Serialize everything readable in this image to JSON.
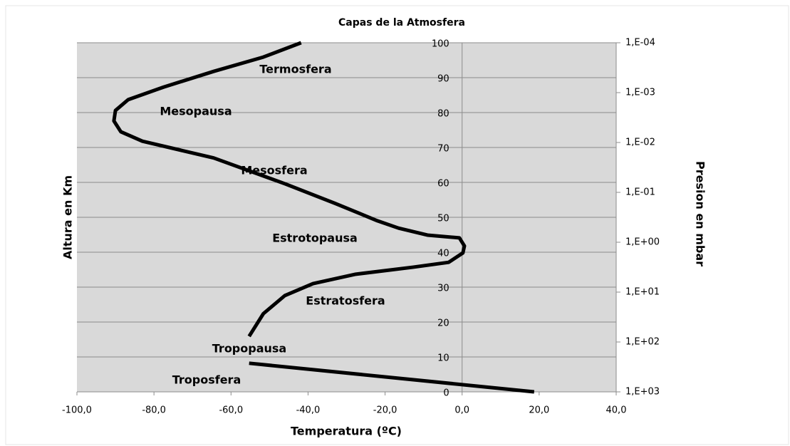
{
  "chart_data": {
    "type": "line",
    "title": "Capas de la Atmosfera",
    "x_label": "Temperatura (ºC)",
    "y_label": "Altura en Km",
    "y2_label": "Presion en mbar",
    "x": [
      18.7,
      -55.3,
      null,
      -55.3,
      -51.6,
      -46,
      -38.7,
      -27.6,
      -12.8,
      -3.5,
      0.2,
      0.6,
      -0.7,
      -9,
      -16.5,
      -22,
      -33,
      -46,
      -64.5,
      -83,
      -88.6,
      -90.4,
      -90,
      -86.7,
      -77.5,
      -64.5,
      -51.6,
      -41.8
    ],
    "series": [
      {
        "name": "Temperatura",
        "color": "#000000",
        "values": [
          0,
          8.2,
          null,
          15.9,
          22.4,
          27.6,
          31,
          33.7,
          35.7,
          37.1,
          39.8,
          41.8,
          44.1,
          44.9,
          46.9,
          49,
          54,
          59.6,
          67,
          71.8,
          74.5,
          77.6,
          80.6,
          83.7,
          87.3,
          91.8,
          95.9,
          100
        ]
      }
    ],
    "xlim": [
      -100,
      40
    ],
    "xticks": [
      {
        "value": -100,
        "label": "-100,0"
      },
      {
        "value": -80,
        "label": "-80,0"
      },
      {
        "value": -60,
        "label": "-60,0"
      },
      {
        "value": -40,
        "label": "-40,0"
      },
      {
        "value": -20,
        "label": "-20,0"
      },
      {
        "value": 0,
        "label": "0,0"
      },
      {
        "value": 20,
        "label": "20,0"
      },
      {
        "value": 40,
        "label": "40,0"
      }
    ],
    "ylim": [
      0,
      100
    ],
    "yticks": [
      0,
      10,
      20,
      30,
      40,
      50,
      60,
      70,
      80,
      90,
      100
    ],
    "y2lim": [
      1000,
      0.0001
    ],
    "y2_log": true,
    "y2ticks": [
      {
        "value": 1000,
        "label": "1,E+03"
      },
      {
        "value": 100,
        "label": "1,E+02"
      },
      {
        "value": 10,
        "label": "1,E+01"
      },
      {
        "value": 1,
        "label": "1,E+00"
      },
      {
        "value": 0.1,
        "label": "1,E-01"
      },
      {
        "value": 0.01,
        "label": "1,E-02"
      },
      {
        "value": 0.001,
        "label": "1,E-03"
      },
      {
        "value": 0.0001,
        "label": "1,E-04"
      }
    ],
    "grid": true,
    "annotations": [
      "Termosfera",
      "Mesopausa",
      "Mesosfera",
      "Estrotopausa",
      "Estratosfera",
      "Tropopausa",
      "Troposfera"
    ]
  }
}
